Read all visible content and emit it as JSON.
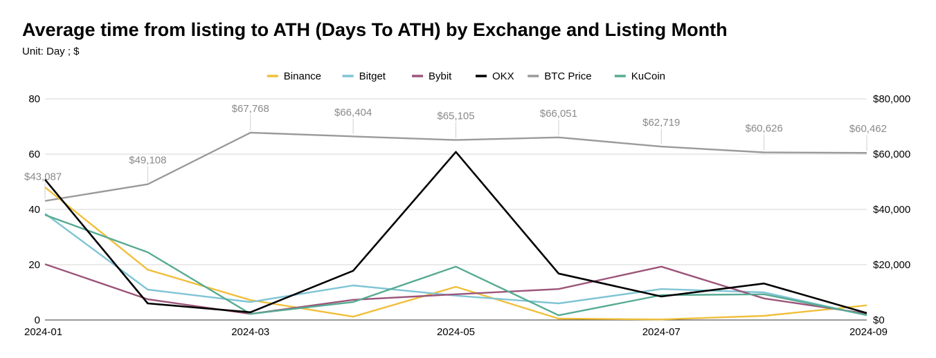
{
  "chart_data": {
    "type": "line",
    "title": "Average time from listing to ATH (Days To ATH) by Exchange and Listing Month",
    "subtitle": "Unit: Day ; $",
    "x": [
      "2024-01",
      "2024-02",
      "2024-03",
      "2024-04",
      "2024-05",
      "2024-06",
      "2024-07",
      "2024-08",
      "2024-09"
    ],
    "x_tick_labels": [
      "2024-01",
      "2024-03",
      "2024-05",
      "2024-07",
      "2024-09"
    ],
    "ylim_left": [
      0,
      80
    ],
    "y_ticks_left": [
      "0",
      "20",
      "40",
      "60",
      "80"
    ],
    "ylim_right": [
      0,
      80000
    ],
    "y_ticks_right": [
      "$0",
      "$20,000",
      "$40,000",
      "$60,000",
      "$80,000"
    ],
    "grid": true,
    "legend_position": "top",
    "series": [
      {
        "name": "Binance",
        "axis": "left",
        "color": "#f0bf3a",
        "values": [
          48,
          18.2,
          7.2,
          1.2,
          12,
          0.5,
          0.2,
          1.5,
          5.3
        ]
      },
      {
        "name": "Bitget",
        "axis": "left",
        "color": "#7fc4d4",
        "values": [
          38.5,
          11,
          6.5,
          12.5,
          8.8,
          6,
          11.2,
          10,
          1.7
        ]
      },
      {
        "name": "Bybit",
        "axis": "left",
        "color": "#9c5479",
        "values": [
          20.2,
          7.5,
          2.2,
          7.3,
          9.3,
          11.2,
          19.3,
          7.8,
          2.3
        ]
      },
      {
        "name": "OKX",
        "axis": "left",
        "color": "#000000",
        "values": [
          50.8,
          6,
          2.8,
          17.8,
          60.8,
          16.8,
          8.5,
          13.2,
          2.5
        ]
      },
      {
        "name": "BTC Price",
        "axis": "right",
        "color": "#9a9a9a",
        "values": [
          43087,
          49108,
          67768,
          66404,
          65105,
          66051,
          62719,
          60626,
          60462
        ],
        "labels": [
          "$43,087",
          "$49,108",
          "$67,768",
          "$66,404",
          "$65,105",
          "$66,051",
          "$62,719",
          "$60,626",
          "$60,462"
        ]
      },
      {
        "name": "KuCoin",
        "axis": "left",
        "color": "#57ab93",
        "values": [
          38,
          24.5,
          2.2,
          6.5,
          19.3,
          1.7,
          9,
          9.3,
          1.8
        ]
      }
    ]
  }
}
